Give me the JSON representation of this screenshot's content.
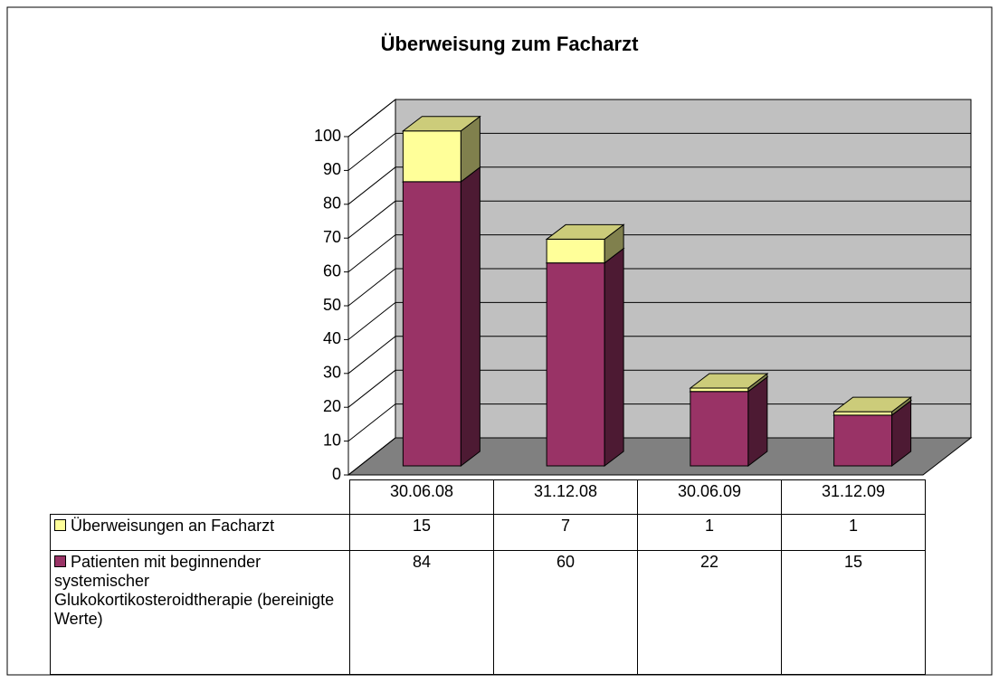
{
  "chart_data": {
    "type": "bar3d_stacked",
    "title": "Überweisung zum Facharzt",
    "categories": [
      "30.06.08",
      "31.12.08",
      "30.06.09",
      "31.12.09"
    ],
    "series": [
      {
        "name": "Überweisungen an Facharzt",
        "color": "#ffff99",
        "values": [
          15,
          7,
          1,
          1
        ]
      },
      {
        "name": "Patienten mit beginnender systemischer Glukokortikosteroidtherapie (bereinigte Werte)",
        "color": "#993366",
        "values": [
          84,
          60,
          22,
          15
        ]
      }
    ],
    "ylim": [
      0,
      100
    ],
    "yticks": [
      0,
      10,
      20,
      30,
      40,
      50,
      60,
      70,
      80,
      90,
      100
    ],
    "grid": true
  }
}
